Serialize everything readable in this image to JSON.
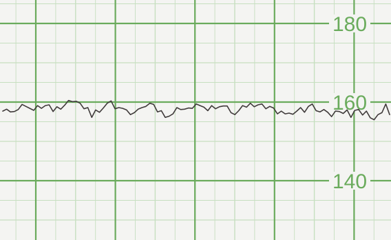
{
  "chart_data": {
    "type": "line",
    "title": "",
    "xlabel": "",
    "ylabel": "",
    "ylim": [
      130,
      190
    ],
    "y_ticks": [
      140,
      160,
      180
    ],
    "y_tick_labels": [
      "140",
      "160",
      "180"
    ],
    "grid": true,
    "series": [
      {
        "values": [
          157.7,
          158.2,
          157.5,
          157.6,
          158.1,
          159.4,
          158.9,
          158.4,
          157.9,
          159.1,
          158.4,
          159.1,
          159.3,
          157.6,
          158.8,
          158.2,
          159.2,
          160.4,
          160.1,
          160.2,
          159.7,
          158.3,
          158.6,
          156.1,
          158.0,
          157.4,
          158.5,
          159.7,
          160.3,
          158.3,
          158.6,
          158.4,
          158.0,
          156.8,
          157.3,
          158.2,
          158.6,
          158.9,
          159.7,
          159.4,
          157.5,
          157.8,
          156.1,
          156.4,
          157.0,
          158.6,
          158.1,
          158.2,
          158.5,
          158.4,
          159.5,
          159.1,
          158.7,
          157.8,
          159.1,
          158.3,
          158.8,
          159.0,
          159.0,
          157.3,
          156.8,
          157.8,
          159.1,
          158.7,
          159.7,
          158.8,
          159.3,
          159.5,
          158.3,
          158.9,
          158.5,
          157.0,
          157.7,
          157.0,
          157.2,
          156.9,
          157.7,
          158.6,
          157.4,
          158.9,
          159.5,
          157.8,
          157.5,
          158.1,
          157.4,
          156.3,
          157.7,
          157.6,
          157.1,
          158.0,
          156.1,
          157.9,
          158.1,
          156.7,
          157.7,
          156.0,
          155.5,
          156.8,
          157.3,
          159.5,
          156.8
        ]
      }
    ]
  },
  "colors": {
    "paper": "#f4f4f2",
    "minor_grid": "#c6dfc0",
    "major_grid": "#6aab5c",
    "tick_label": "#6aab5c",
    "trace": "#3f3a3a"
  }
}
